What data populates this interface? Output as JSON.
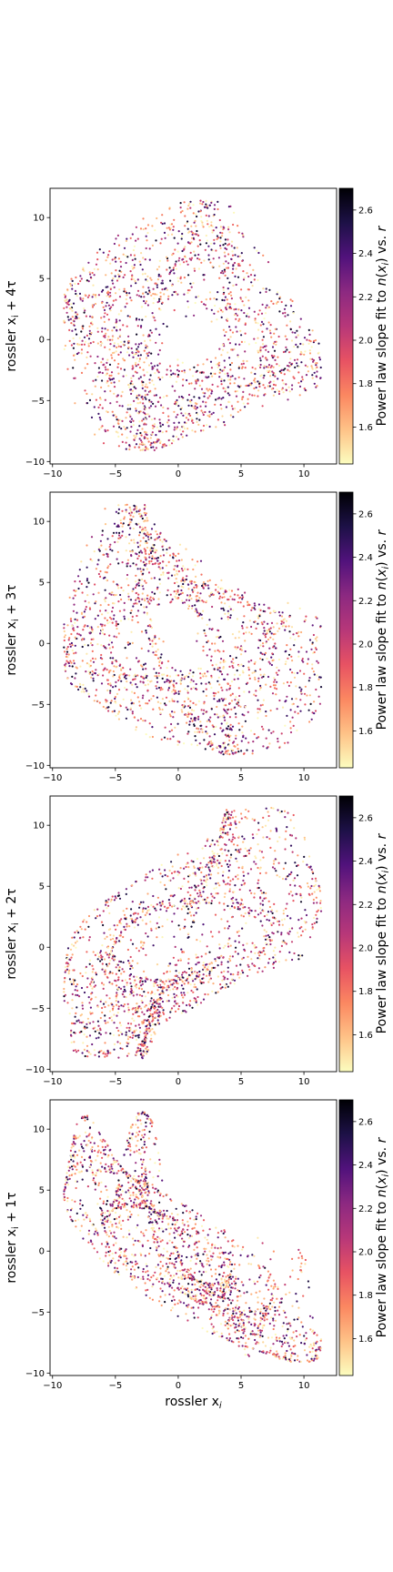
{
  "colormap": "magma_r",
  "colorbar": {
    "label": "Power law slope fit to n(x_i) vs. r",
    "label_prefix": "Power law slope fit to ",
    "label_n": "n",
    "label_open": "(",
    "label_x": "x",
    "label_sub": "i",
    "label_close": ") vs. ",
    "label_r": "r",
    "vmin": 1.43,
    "vmax": 2.7,
    "ticks": [
      "1.6",
      "1.8",
      "2.0",
      "2.2",
      "2.4",
      "2.6"
    ],
    "tick_values": [
      1.6,
      1.8,
      2.0,
      2.2,
      2.4,
      2.6
    ]
  },
  "shared_xlabel": {
    "text": "rossler x",
    "sub": "i"
  },
  "chart_data": [
    {
      "type": "scatter",
      "lag": 4,
      "ylabel": {
        "prefix": "rossler x",
        "sub": "i",
        "suffix": " + 4τ"
      },
      "xlim": [
        -10.2,
        12.6
      ],
      "ylim": [
        -10.2,
        12.4
      ],
      "xticks": [
        -10,
        -5,
        0,
        5,
        10
      ],
      "yticks": [
        -10,
        -5,
        0,
        5,
        10
      ],
      "xticklabels": [
        "−10",
        "−5",
        "0",
        "5",
        "10"
      ],
      "yticklabels": [
        "−10",
        "−5",
        "0",
        "5",
        "10"
      ],
      "xlabel": "",
      "series": [
        {
          "x": "rossler x_i",
          "y": "rossler x_i+4τ",
          "color_by": "power-law slope"
        }
      ]
    },
    {
      "type": "scatter",
      "lag": 3,
      "ylabel": {
        "prefix": "rossler x",
        "sub": "i",
        "suffix": " + 3τ"
      },
      "xlim": [
        -10.2,
        12.6
      ],
      "ylim": [
        -10.2,
        12.4
      ],
      "xticks": [
        -10,
        -5,
        0,
        5,
        10
      ],
      "yticks": [
        -10,
        -5,
        0,
        5,
        10
      ],
      "xticklabels": [
        "−10",
        "−5",
        "0",
        "5",
        "10"
      ],
      "yticklabels": [
        "−10",
        "−5",
        "0",
        "5",
        "10"
      ],
      "xlabel": "",
      "series": [
        {
          "x": "rossler x_i",
          "y": "rossler x_i+3τ",
          "color_by": "power-law slope"
        }
      ]
    },
    {
      "type": "scatter",
      "lag": 2,
      "ylabel": {
        "prefix": "rossler x",
        "sub": "i",
        "suffix": " + 2τ"
      },
      "xlim": [
        -10.2,
        12.6
      ],
      "ylim": [
        -10.2,
        12.4
      ],
      "xticks": [
        -10,
        -5,
        0,
        5,
        10
      ],
      "yticks": [
        -10,
        -5,
        0,
        5,
        10
      ],
      "xticklabels": [
        "−10",
        "−5",
        "0",
        "5",
        "10"
      ],
      "yticklabels": [
        "−10",
        "−5",
        "0",
        "5",
        "10"
      ],
      "xlabel": "",
      "series": [
        {
          "x": "rossler x_i",
          "y": "rossler x_i+2τ",
          "color_by": "power-law slope"
        }
      ]
    },
    {
      "type": "scatter",
      "lag": 1,
      "ylabel": {
        "prefix": "rossler x",
        "sub": "i",
        "suffix": " + 1τ"
      },
      "xlim": [
        -10.2,
        12.6
      ],
      "ylim": [
        -10.2,
        12.4
      ],
      "xticks": [
        -10,
        -5,
        0,
        5,
        10
      ],
      "yticks": [
        -10,
        -5,
        0,
        5,
        10
      ],
      "xticklabels": [
        "−10",
        "−5",
        "0",
        "5",
        "10"
      ],
      "yticklabels": [
        "−10",
        "−5",
        "0",
        "5",
        "10"
      ],
      "xlabel": "rossler x_i",
      "series": [
        {
          "x": "rossler x_i",
          "y": "rossler x_i+1τ",
          "color_by": "power-law slope"
        }
      ]
    }
  ]
}
